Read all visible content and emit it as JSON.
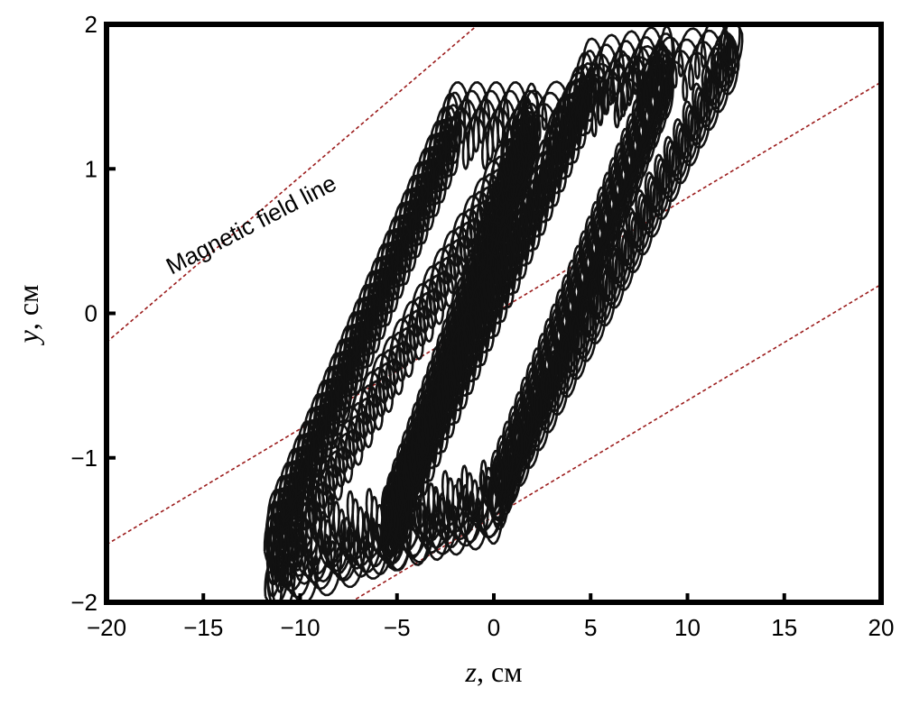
{
  "chart_data": {
    "type": "line",
    "title": "",
    "xlabel": "z, см",
    "xlabel_var": "z",
    "xlabel_unit": ", см",
    "ylabel": "y, см",
    "ylabel_var": "y",
    "ylabel_unit": ", см",
    "xlim": [
      -20,
      20
    ],
    "ylim": [
      -2,
      2
    ],
    "x_ticks": [
      -20,
      -15,
      -10,
      -5,
      0,
      5,
      10,
      15,
      20
    ],
    "x_tick_labels": [
      "−20",
      "−15",
      "−10",
      "−5",
      "0",
      "5",
      "10",
      "15",
      "20"
    ],
    "y_ticks": [
      -2,
      -1,
      0,
      1,
      2
    ],
    "y_tick_labels": [
      "−2",
      "−1",
      "0",
      "1",
      "2"
    ],
    "grid": false,
    "annotation": "Magnetic field line",
    "field_lines": [
      {
        "x": [
          -20,
          -0.8
        ],
        "y": [
          -0.2,
          2.0
        ]
      },
      {
        "x": [
          -20,
          20
        ],
        "y": [
          -1.6,
          1.6
        ]
      },
      {
        "x": [
          -7.4,
          20
        ],
        "y": [
          -2.0,
          0.2
        ]
      }
    ],
    "field_line_color": "#9b1b1b",
    "series": [
      {
        "path": [
          [
            -11.5,
            -1.6
          ],
          [
            -5.5,
            -1.5
          ],
          [
            2.0,
            1.3
          ],
          [
            -2.0,
            1.3
          ],
          [
            -11.5,
            -1.6
          ]
        ],
        "oscillation": 0.18,
        "turns": 5
      },
      {
        "path": [
          [
            -5.5,
            -1.5
          ],
          [
            0.0,
            -1.3
          ],
          [
            9.0,
            1.7
          ],
          [
            5.0,
            1.6
          ],
          [
            -5.5,
            -1.5
          ]
        ],
        "oscillation": 0.18,
        "turns": 5
      },
      {
        "path": [
          [
            -11.5,
            -1.85
          ],
          [
            0.0,
            -1.3
          ],
          [
            12.5,
            1.85
          ],
          [
            2.0,
            1.3
          ],
          [
            -11.5,
            -1.85
          ]
        ],
        "oscillation": 0.15,
        "turns": 4
      }
    ],
    "series_color": "#111111"
  }
}
